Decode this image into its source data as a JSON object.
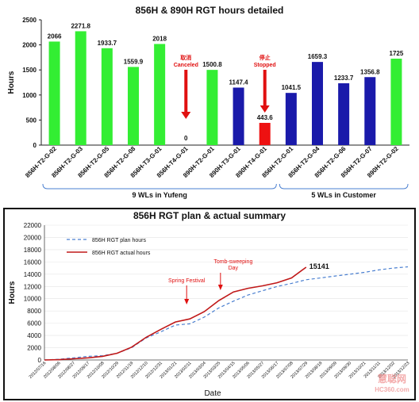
{
  "chart_data": [
    {
      "type": "bar",
      "title": "856H & 890H RGT hours detailed",
      "ylabel": "Hours",
      "xlabel": "",
      "ylim": [
        0,
        2500
      ],
      "yticks": [
        0,
        500,
        1000,
        1500,
        2000,
        2500
      ],
      "categories": [
        "856H-T2-G-02",
        "856H-T2-G-03",
        "856H-T2-G-05",
        "856H-T2-G-08",
        "856H-T3-G-01",
        "856H-T4-G-01",
        "890H-T2-G-01",
        "890H-T3-G-01",
        "890H-T4-G-01",
        "856H-T2-G-01",
        "856H-T2-G-04",
        "856H-T2-G-06",
        "856H-T2-G-07",
        "890H-T2-G-02"
      ],
      "values": [
        2066,
        2271.8,
        1933.7,
        1559.9,
        2018,
        0,
        1500.8,
        1147.4,
        443.6,
        1041.5,
        1659.3,
        1233.7,
        1356.8,
        1725
      ],
      "value_labels": [
        "2066",
        "2271.8",
        "1933.7",
        "1559.9",
        "2018",
        "0",
        "1500.8",
        "1147.4",
        "443.6",
        "1041.5",
        "1659.3",
        "1233.7",
        "1356.8",
        "1725"
      ],
      "bar_colors": [
        "#33ee33",
        "#33ee33",
        "#33ee33",
        "#33ee33",
        "#33ee33",
        "#33ee33",
        "#33ee33",
        "#1a1aaa",
        "#ee1111",
        "#1a1aaa",
        "#1a1aaa",
        "#1a1aaa",
        "#1a1aaa",
        "#33ee33"
      ],
      "annotations": [
        {
          "category_index": 5,
          "lines": [
            "取消",
            "Canceled"
          ]
        },
        {
          "category_index": 8,
          "lines": [
            "停止",
            "Stopped"
          ]
        }
      ],
      "groups": [
        {
          "label": "9 WLs in Yufeng",
          "from_index": 0,
          "to_index": 8
        },
        {
          "label": "5 WLs in Customer",
          "from_index": 9,
          "to_index": 13
        }
      ]
    },
    {
      "type": "line",
      "title": "856H RGT plan & actual summary",
      "xlabel": "Date",
      "ylabel": "Hours",
      "ylim": [
        0,
        22000
      ],
      "yticks": [
        0,
        2000,
        4000,
        6000,
        8000,
        10000,
        12000,
        14000,
        16000,
        18000,
        20000,
        22000
      ],
      "x": [
        "2012/07/16",
        "2012/08/06",
        "2012/08/27",
        "2012/09/17",
        "2012/10/08",
        "2012/10/29",
        "2012/11/19",
        "2012/12/10",
        "2012/12/31",
        "2013/01/21",
        "2013/02/11",
        "2013/03/04",
        "2013/03/25",
        "2013/04/15",
        "2013/05/06",
        "2013/05/27",
        "2013/06/17",
        "2013/07/08",
        "2013/07/29",
        "2013/08/19",
        "2013/09/09",
        "2013/09/30",
        "2013/10/21",
        "2013/11/11",
        "2013/12/02",
        "2013/12/23"
      ],
      "legend": [
        "856H RGT plan hours",
        "856H RGT actual hours"
      ],
      "series": [
        {
          "name": "856H RGT plan hours",
          "color": "#4a7fd0",
          "dash": true,
          "values": [
            0,
            120,
            350,
            600,
            700,
            1100,
            2000,
            3600,
            4600,
            5700,
            5900,
            7000,
            8500,
            9600,
            10600,
            11300,
            12000,
            12500,
            13100,
            13400,
            13700,
            14000,
            14300,
            14700,
            15000,
            15200
          ]
        },
        {
          "name": "856H RGT actual hours",
          "color": "#c01818",
          "dash": false,
          "values": [
            0,
            50,
            200,
            350,
            600,
            1100,
            2100,
            3700,
            5000,
            6200,
            6700,
            7900,
            9700,
            11100,
            11700,
            12100,
            12600,
            13400,
            15141,
            null,
            null,
            null,
            null,
            null,
            null,
            null
          ]
        }
      ],
      "annotations": [
        {
          "text": "15141",
          "x_index": 18
        },
        {
          "text": "Spring Festival",
          "x_index": 10
        },
        {
          "text": "Tomb-sweeping Day",
          "x_index": 12
        }
      ]
    }
  ],
  "watermark": {
    "cn": "慧聪网",
    "en": "HC360.com"
  }
}
